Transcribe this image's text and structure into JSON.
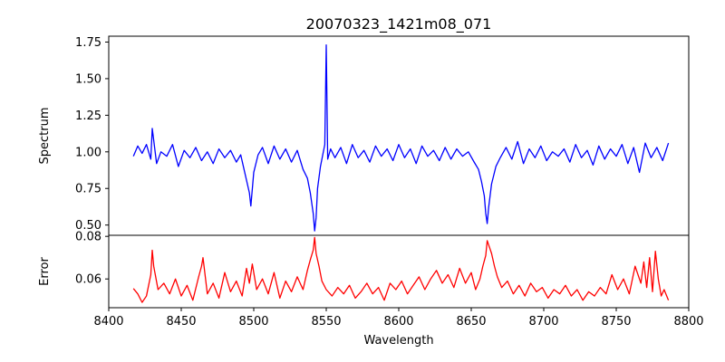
{
  "chart_data": [
    {
      "type": "line",
      "title": "20070323_1421m08_071",
      "ylabel": "Spectrum",
      "xlabel": "",
      "xlim": [
        8400,
        8800
      ],
      "ylim": [
        0.43,
        1.79
      ],
      "yticks": [
        "0.50",
        "0.75",
        "1.00",
        "1.25",
        "1.50",
        "1.75"
      ],
      "yticks_values": [
        0.5,
        0.75,
        1.0,
        1.25,
        1.5,
        1.75
      ],
      "grid": false,
      "series": [
        {
          "color": "#0000ff",
          "x": [
            8417,
            8420,
            8423,
            8426,
            8429,
            8430,
            8433,
            8436,
            8440,
            8444,
            8448,
            8452,
            8456,
            8460,
            8464,
            8468,
            8472,
            8476,
            8480,
            8484,
            8488,
            8491,
            8494,
            8497,
            8498,
            8500,
            8503,
            8506,
            8510,
            8514,
            8518,
            8522,
            8526,
            8530,
            8534,
            8537,
            8539,
            8541,
            8542,
            8543,
            8544,
            8546,
            8548,
            8549,
            8550,
            8551,
            8553,
            8556,
            8560,
            8564,
            8568,
            8572,
            8576,
            8580,
            8584,
            8588,
            8592,
            8596,
            8600,
            8604,
            8608,
            8612,
            8616,
            8620,
            8624,
            8628,
            8632,
            8636,
            8640,
            8644,
            8648,
            8652,
            8655,
            8657,
            8659,
            8660,
            8661,
            8662,
            8664,
            8667,
            8670,
            8674,
            8678,
            8682,
            8686,
            8690,
            8694,
            8698,
            8702,
            8706,
            8710,
            8714,
            8718,
            8722,
            8726,
            8730,
            8734,
            8738,
            8742,
            8746,
            8750,
            8754,
            8758,
            8762,
            8766,
            8770,
            8774,
            8778,
            8782,
            8786
          ],
          "values": [
            0.97,
            1.04,
            0.99,
            1.05,
            0.95,
            1.16,
            0.92,
            1.0,
            0.97,
            1.05,
            0.9,
            1.01,
            0.96,
            1.03,
            0.94,
            1.0,
            0.92,
            1.02,
            0.96,
            1.01,
            0.93,
            0.98,
            0.85,
            0.72,
            0.63,
            0.86,
            0.98,
            1.03,
            0.92,
            1.04,
            0.95,
            1.02,
            0.93,
            1.01,
            0.88,
            0.82,
            0.72,
            0.58,
            0.46,
            0.55,
            0.75,
            0.9,
            1.0,
            1.05,
            1.73,
            0.95,
            1.02,
            0.96,
            1.03,
            0.92,
            1.05,
            0.96,
            1.01,
            0.93,
            1.04,
            0.97,
            1.02,
            0.94,
            1.05,
            0.96,
            1.02,
            0.92,
            1.04,
            0.97,
            1.01,
            0.94,
            1.03,
            0.95,
            1.02,
            0.97,
            1.0,
            0.93,
            0.88,
            0.8,
            0.7,
            0.58,
            0.51,
            0.62,
            0.78,
            0.9,
            0.96,
            1.03,
            0.95,
            1.07,
            0.92,
            1.02,
            0.96,
            1.04,
            0.94,
            1.0,
            0.97,
            1.02,
            0.93,
            1.05,
            0.96,
            1.01,
            0.91,
            1.04,
            0.95,
            1.02,
            0.97,
            1.05,
            0.92,
            1.03,
            0.86,
            1.06,
            0.96,
            1.03,
            0.94,
            1.06
          ]
        }
      ]
    },
    {
      "type": "line",
      "title": "",
      "ylabel": "Error",
      "xlabel": "Wavelength",
      "xlim": [
        8400,
        8800
      ],
      "ylim": [
        0.0465,
        0.0805
      ],
      "yticks": [
        "0.06",
        "0.08"
      ],
      "yticks_values": [
        0.06,
        0.08
      ],
      "xticks": [
        "8400",
        "8450",
        "8500",
        "8550",
        "8600",
        "8650",
        "8700",
        "8750",
        "8800"
      ],
      "xticks_values": [
        8400,
        8450,
        8500,
        8550,
        8600,
        8650,
        8700,
        8750,
        8800
      ],
      "grid": false,
      "series": [
        {
          "color": "#ff0000",
          "x": [
            8417,
            8420,
            8423,
            8426,
            8429,
            8430,
            8431,
            8434,
            8438,
            8442,
            8446,
            8450,
            8454,
            8458,
            8462,
            8464,
            8465,
            8468,
            8472,
            8476,
            8480,
            8484,
            8488,
            8492,
            8495,
            8497,
            8499,
            8502,
            8506,
            8510,
            8514,
            8518,
            8522,
            8526,
            8530,
            8534,
            8537,
            8539,
            8541,
            8542,
            8543,
            8545,
            8547,
            8550,
            8554,
            8558,
            8562,
            8566,
            8570,
            8574,
            8578,
            8582,
            8586,
            8590,
            8594,
            8598,
            8602,
            8606,
            8610,
            8614,
            8618,
            8622,
            8626,
            8630,
            8634,
            8638,
            8642,
            8646,
            8650,
            8653,
            8656,
            8658,
            8660,
            8661,
            8662,
            8664,
            8666,
            8668,
            8671,
            8675,
            8679,
            8683,
            8687,
            8691,
            8695,
            8699,
            8703,
            8707,
            8711,
            8715,
            8719,
            8723,
            8727,
            8731,
            8735,
            8739,
            8743,
            8747,
            8751,
            8755,
            8759,
            8763,
            8767,
            8769,
            8771,
            8773,
            8775,
            8777,
            8779,
            8781,
            8783,
            8786
          ],
          "values": [
            0.0555,
            0.053,
            0.049,
            0.052,
            0.062,
            0.0735,
            0.066,
            0.055,
            0.058,
            0.053,
            0.06,
            0.052,
            0.057,
            0.05,
            0.061,
            0.066,
            0.07,
            0.053,
            0.058,
            0.051,
            0.063,
            0.054,
            0.059,
            0.052,
            0.065,
            0.058,
            0.067,
            0.055,
            0.06,
            0.053,
            0.063,
            0.051,
            0.059,
            0.054,
            0.061,
            0.055,
            0.064,
            0.069,
            0.0735,
            0.0795,
            0.072,
            0.066,
            0.059,
            0.055,
            0.052,
            0.056,
            0.053,
            0.057,
            0.051,
            0.054,
            0.058,
            0.053,
            0.056,
            0.05,
            0.058,
            0.055,
            0.059,
            0.053,
            0.057,
            0.061,
            0.055,
            0.06,
            0.064,
            0.058,
            0.062,
            0.056,
            0.065,
            0.058,
            0.063,
            0.055,
            0.06,
            0.066,
            0.071,
            0.078,
            0.076,
            0.072,
            0.066,
            0.061,
            0.056,
            0.059,
            0.053,
            0.057,
            0.052,
            0.058,
            0.054,
            0.056,
            0.051,
            0.055,
            0.053,
            0.057,
            0.052,
            0.055,
            0.05,
            0.054,
            0.052,
            0.056,
            0.053,
            0.062,
            0.055,
            0.06,
            0.053,
            0.066,
            0.058,
            0.068,
            0.056,
            0.07,
            0.054,
            0.073,
            0.06,
            0.052,
            0.055,
            0.05
          ]
        }
      ]
    }
  ]
}
